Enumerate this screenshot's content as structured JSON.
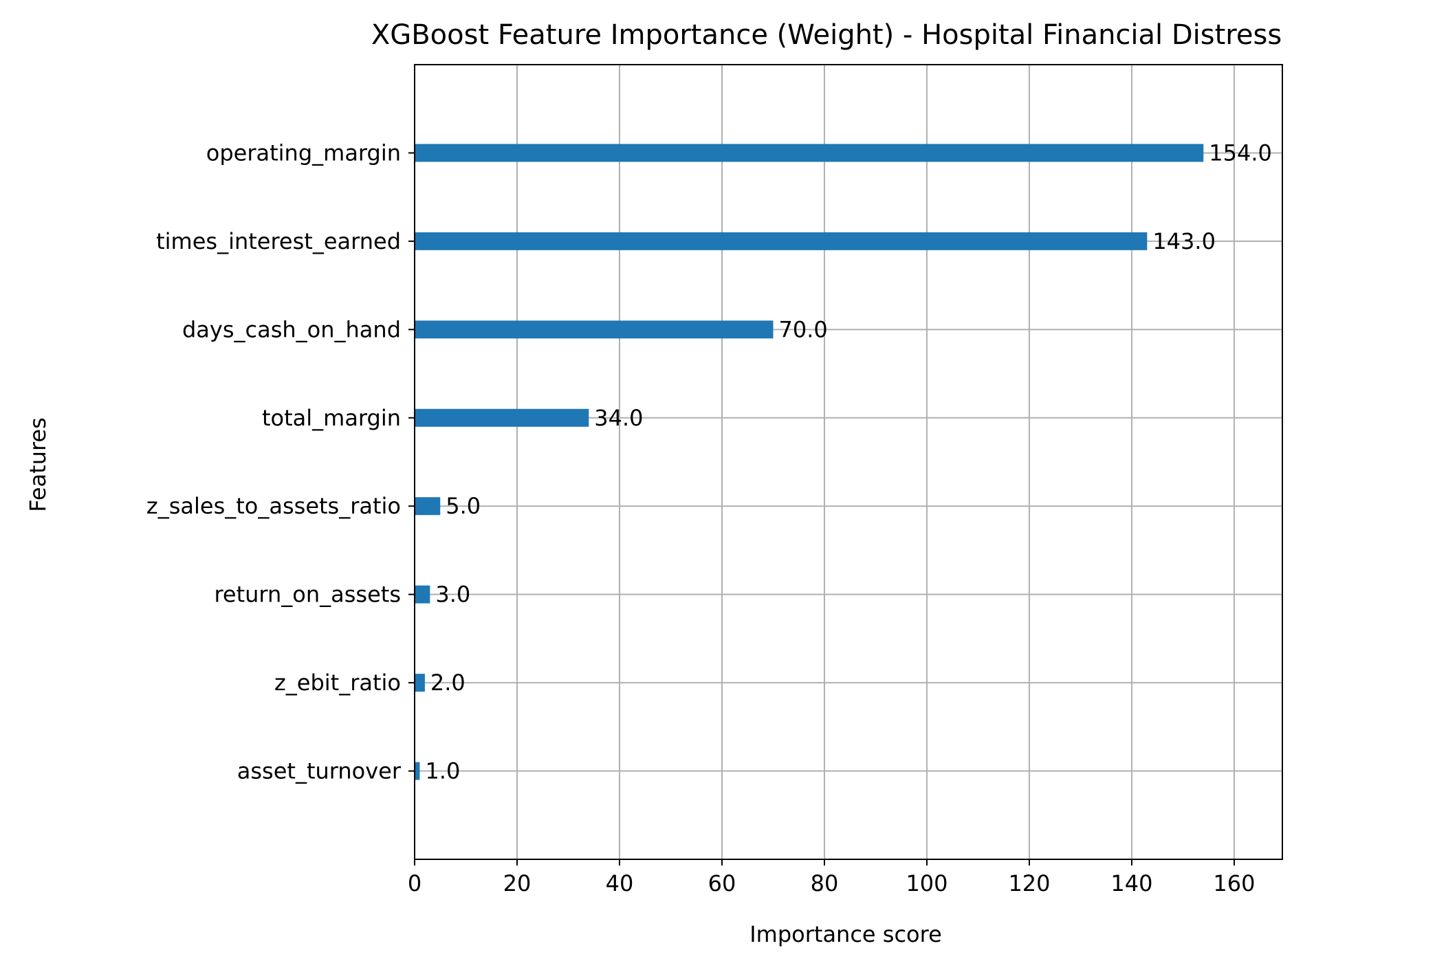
{
  "colors": {
    "bar": "#1f77b4",
    "grid": "#b0b0b0",
    "axis": "#000000",
    "text": "#000000",
    "background": "#ffffff"
  },
  "chart_data": {
    "type": "bar",
    "orientation": "horizontal",
    "title": "XGBoost Feature Importance (Weight) - Hospital Financial Distress",
    "xlabel": "Importance score",
    "ylabel": "Features",
    "xlim": [
      0,
      169.4
    ],
    "xticks": [
      0,
      20,
      40,
      60,
      80,
      100,
      120,
      140,
      160
    ],
    "grid": true,
    "legend": "none",
    "categories": [
      "operating_margin",
      "times_interest_earned",
      "days_cash_on_hand",
      "total_margin",
      "z_sales_to_assets_ratio",
      "return_on_assets",
      "z_ebit_ratio",
      "asset_turnover"
    ],
    "values": [
      154,
      143,
      70,
      34,
      5,
      3,
      2,
      1
    ],
    "value_labels": [
      "154.0",
      "143.0",
      "70.0",
      "34.0",
      "5.0",
      "3.0",
      "2.0",
      "1.0"
    ]
  }
}
